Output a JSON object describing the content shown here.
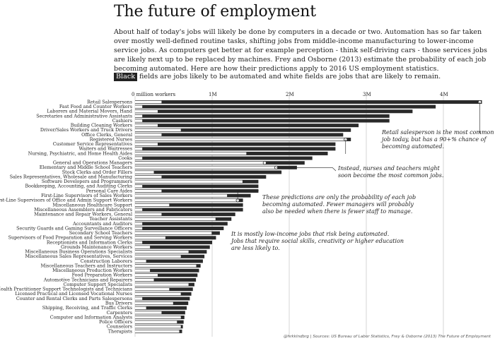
{
  "header": {
    "title": "The future of employment",
    "intro": "About half of today's jobs will likely be done by computers in a decade or two. Automation has so far taken over mostly well-defined routine tasks, shifting jobs from middle-income manufacturing to lower-income service jobs. As computers get better at for example perception - think self-driving cars - those services jobs are likely next up to be replaced by machines. Frey and Osborne (2013) estimate the probability of each job becoming automated. Here are how their predictions apply to 2016 US employment statistics.",
    "legend_chip": "Black",
    "legend_rest": "fields are jobs likely to be automated and white fields are jobs that are likely to remain."
  },
  "annotations": [
    {
      "id": "retail",
      "lines": [
        "Retail salesperson is the most common",
        "job today, but has a 90+% chance of",
        "becoming automated."
      ]
    },
    {
      "id": "nurses",
      "lines": [
        "Instead, nurses and teachers might",
        "soon become the most common jobs."
      ]
    },
    {
      "id": "managers",
      "lines": [
        "These predictions are only the probability of each job",
        "becoming automated. Fewer managers will probably",
        "also be needed when there is fewer staff to manage."
      ]
    },
    {
      "id": "lowincome",
      "lines": [
        "It is mostly low-income jobs that risk being automated.",
        "Jobs that require social skills, creativity or higher education",
        "are less likely to."
      ]
    }
  ],
  "footer": "@hrkklndbrg | Sources: US Bureau of Labor Statistics, Frey & Osborne (2013) The Future of Employment",
  "chart_data": {
    "type": "bar",
    "orientation": "horizontal",
    "x_ticks": [
      "0 million workers",
      "1M",
      "2M",
      "3M",
      "4M"
    ],
    "xlim": [
      0,
      4.6
    ],
    "series": [
      {
        "name": "likely to be automated",
        "color": "#2a2a2a"
      },
      {
        "name": "likely to remain",
        "color": "#ffffff"
      }
    ],
    "categories": [
      "Retail Salespersons",
      "Fast Food and Counter Workers",
      "Laborers and Material Movers, Hand",
      "Secretaries and Administrative Assistants",
      "Cashiers",
      "Building Cleaning Workers",
      "Driver/Sales Workers and Truck Drivers",
      "Office Clerks, General",
      "Registered Nurses",
      "Customer Service Representatives",
      "Waiters and Waitresses",
      "Nursing, Psychiatric, and Home Health Aides",
      "Cooks",
      "General and Operations Managers",
      "Elementary and Middle School Teachers",
      "Stock Clerks and Order Fillers",
      "Sales Representatives, Wholesale and Manufacturing",
      "Software Developers and Programmers",
      "Bookkeeping, Accounting, and Auditing Clerks",
      "Personal Care Aides",
      "First-Line Supervisors of Sales Workers",
      "First-Line Supervisors of Office and Admin Support Workers",
      "Miscellaneous Healthcare Support",
      "Miscellaneous Assemblers and Fabricators",
      "Maintenance and Repair Workers, General",
      "Teacher Assistants",
      "Accountants and Auditors",
      "Security Guards and Gaming Surveillance Officers",
      "Secondary School Teachers",
      "Supervisors of Food Preparation and Serving Workers",
      "Receptionists and Information Clerks",
      "Grounds Maintenance Workers",
      "Miscellaneous Business Operations Specialists",
      "Miscellaneous Sales Representatives, Services",
      "Construction Laborers",
      "Miscellaneous Teachers and Instructors",
      "Miscellaneous Production Workers",
      "Food Preparation Workers",
      "Automotive Technicians and Repairers",
      "Computer Support Specialists",
      "Health Practitioner Support Technologists and Technicians",
      "Licensed Practical and Licensed Vocational Nurses",
      "Counter and Rental Clerks and Parts Salespersons",
      "Bus Drivers",
      "Shipping, Receiving, and Traffic Clerks",
      "Carpenters",
      "Computer and Information Analysts",
      "Police Officers",
      "Counselors",
      "Therapists"
    ],
    "totals": [
      4.5,
      3.9,
      3.6,
      3.3,
      3.3,
      2.9,
      2.8,
      2.7,
      2.8,
      2.6,
      2.6,
      2.5,
      2.3,
      2.2,
      2.1,
      1.9,
      1.7,
      1.6,
      1.6,
      1.6,
      1.5,
      1.4,
      1.4,
      1.4,
      1.3,
      1.25,
      1.2,
      1.15,
      1.1,
      1.05,
      1.0,
      0.97,
      0.93,
      0.9,
      0.88,
      0.85,
      0.83,
      0.81,
      0.79,
      0.77,
      0.75,
      0.73,
      0.71,
      0.69,
      0.67,
      0.65,
      0.64,
      0.63,
      0.62,
      0.61
    ],
    "remain": [
      0.35,
      0.1,
      0.3,
      0.1,
      0.1,
      0.3,
      0.6,
      0.35,
      2.75,
      0.3,
      0.1,
      1.45,
      0.1,
      1.7,
      1.85,
      0.25,
      0.35,
      1.4,
      0.1,
      0.35,
      1.2,
      1.35,
      0.45,
      0.1,
      0.35,
      1.05,
      0.1,
      0.1,
      1.0,
      0.4,
      0.1,
      0.2,
      0.7,
      0.6,
      0.15,
      0.8,
      0.2,
      0.3,
      0.25,
      0.7,
      0.45,
      0.6,
      0.1,
      0.5,
      0.15,
      0.35,
      0.6,
      0.55,
      0.6,
      0.58
    ]
  }
}
